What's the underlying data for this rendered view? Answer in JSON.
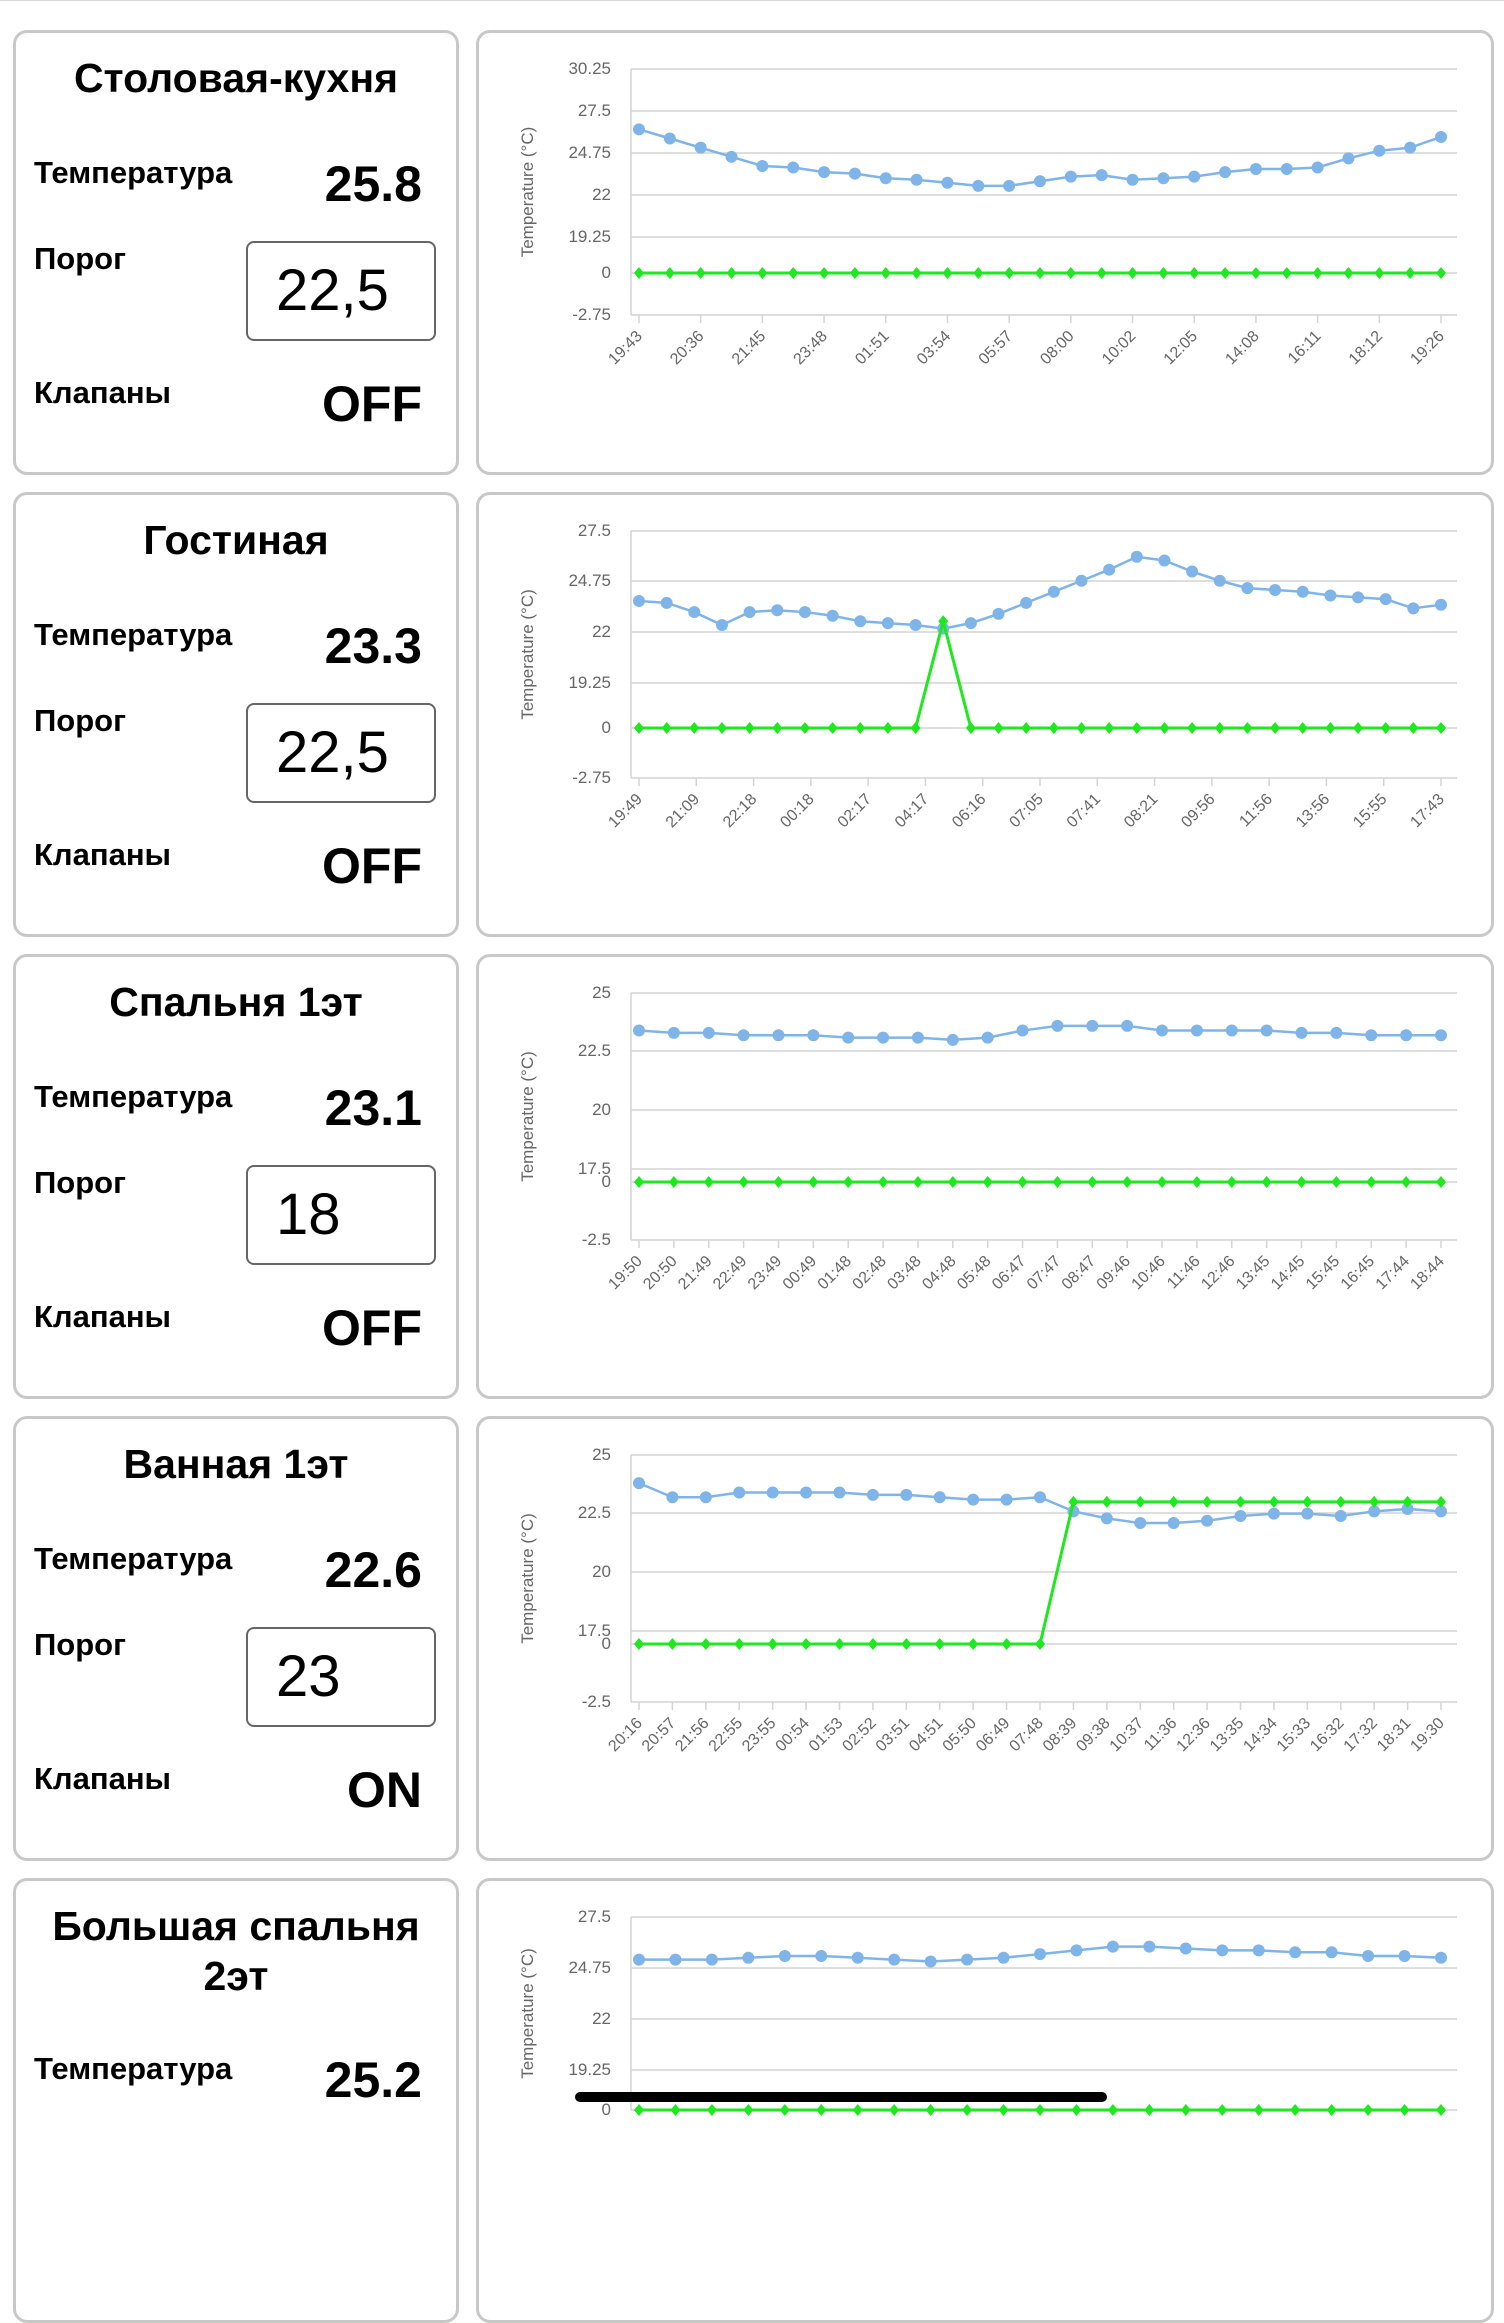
{
  "labels": {
    "temperature": "Температура",
    "threshold": "Порог",
    "valves": "Клапаны"
  },
  "rooms": [
    {
      "name": "Столовая-кухня",
      "temperature": "25.8",
      "threshold": "22,5",
      "valves": "OFF"
    },
    {
      "name": "Гостиная",
      "temperature": "23.3",
      "threshold": "22,5",
      "valves": "OFF"
    },
    {
      "name": "Спальня 1эт",
      "temperature": "23.1",
      "threshold": "18",
      "valves": "OFF"
    },
    {
      "name": "Ванная 1эт",
      "temperature": "22.6",
      "threshold": "23",
      "valves": "ON"
    },
    {
      "name": "Большая спальня 2эт",
      "temperature": "25.2"
    }
  ],
  "colors": {
    "temperature_series": "#7fb4e8",
    "valve_series": "#1ee81e",
    "grid": "#d4d4d4",
    "panel_border": "#c8c8c8"
  },
  "chart_data": [
    {
      "type": "line",
      "ylabel": "Temperature (°C)",
      "y_ticks": [
        "30.25",
        "27.5",
        "24.75",
        "22",
        "19.25",
        "0",
        "-2.75"
      ],
      "x_tick_labels": [
        "19:43",
        "20:36",
        "21:45",
        "23:48",
        "01:51",
        "03:54",
        "05:57",
        "08:00",
        "10:02",
        "12:05",
        "14:08",
        "16:11",
        "18:12",
        "19:26"
      ],
      "series": [
        {
          "values": [
            26.3,
            25.7,
            25.1,
            24.5,
            23.9,
            23.8,
            23.5,
            23.4,
            23.1,
            23.0,
            22.8,
            22.6,
            22.6,
            22.9,
            23.2,
            23.3,
            23.0,
            23.1,
            23.2,
            23.5,
            23.7,
            23.7,
            23.8,
            24.4,
            24.9,
            25.1,
            25.8
          ]
        },
        {
          "values": [
            0,
            0,
            0,
            0,
            0,
            0,
            0,
            0,
            0,
            0,
            0,
            0,
            0,
            0,
            0,
            0,
            0,
            0,
            0,
            0,
            0,
            0,
            0,
            0,
            0,
            0,
            0
          ]
        }
      ]
    },
    {
      "type": "line",
      "ylabel": "Temperature (°C)",
      "y_ticks": [
        "27.5",
        "24.75",
        "22",
        "19.25",
        "0",
        "-2.75"
      ],
      "x_tick_labels": [
        "19:49",
        "21:09",
        "22:18",
        "00:18",
        "02:17",
        "04:17",
        "06:16",
        "07:05",
        "07:41",
        "08:21",
        "09:56",
        "11:56",
        "13:56",
        "15:55",
        "17:43"
      ],
      "series": [
        {
          "values": [
            23.7,
            23.6,
            23.1,
            22.4,
            23.1,
            23.2,
            23.1,
            22.9,
            22.6,
            22.5,
            22.4,
            22.2,
            22.5,
            23.0,
            23.6,
            24.2,
            24.8,
            25.4,
            26.1,
            25.9,
            25.3,
            24.8,
            24.4,
            24.3,
            24.2,
            24.0,
            23.9,
            23.8,
            23.3,
            23.5
          ]
        },
        {
          "values": [
            0,
            0,
            0,
            0,
            0,
            0,
            0,
            0,
            0,
            0,
            0,
            22.6,
            0,
            0,
            0,
            0,
            0,
            0,
            0,
            0,
            0,
            0,
            0,
            0,
            0,
            0,
            0,
            0,
            0,
            0
          ]
        }
      ]
    },
    {
      "type": "line",
      "ylabel": "Temperature (°C)",
      "y_ticks": [
        "25",
        "22.5",
        "20",
        "17.5",
        "0",
        "-2.5"
      ],
      "x_tick_labels": [
        "19:50",
        "20:50",
        "21:49",
        "22:49",
        "23:49",
        "00:49",
        "01:48",
        "02:48",
        "03:48",
        "04:48",
        "05:48",
        "06:47",
        "07:47",
        "08:47",
        "09:46",
        "10:46",
        "11:46",
        "12:46",
        "13:45",
        "14:45",
        "15:45",
        "16:45",
        "17:44",
        "18:44"
      ],
      "series": [
        {
          "values": [
            23.4,
            23.3,
            23.3,
            23.2,
            23.2,
            23.2,
            23.1,
            23.1,
            23.1,
            23.0,
            23.1,
            23.4,
            23.6,
            23.6,
            23.6,
            23.4,
            23.4,
            23.4,
            23.4,
            23.3,
            23.3,
            23.2,
            23.2,
            23.2
          ]
        },
        {
          "values": [
            0,
            0,
            0,
            0,
            0,
            0,
            0,
            0,
            0,
            0,
            0,
            0,
            0,
            0,
            0,
            0,
            0,
            0,
            0,
            0,
            0,
            0,
            0,
            0
          ]
        }
      ]
    },
    {
      "type": "line",
      "ylabel": "Temperature (°C)",
      "y_ticks": [
        "25",
        "22.5",
        "20",
        "17.5",
        "0",
        "-2.5"
      ],
      "x_tick_labels": [
        "20:16",
        "20:57",
        "21:56",
        "22:55",
        "23:55",
        "00:54",
        "01:53",
        "02:52",
        "03:51",
        "04:51",
        "05:50",
        "06:49",
        "07:48",
        "08:39",
        "09:38",
        "10:37",
        "11:36",
        "12:36",
        "13:35",
        "14:34",
        "15:33",
        "16:32",
        "17:32",
        "18:31",
        "19:30"
      ],
      "series": [
        {
          "values": [
            23.8,
            23.2,
            23.2,
            23.4,
            23.4,
            23.4,
            23.4,
            23.3,
            23.3,
            23.2,
            23.1,
            23.1,
            23.2,
            22.6,
            22.3,
            22.1,
            22.1,
            22.2,
            22.4,
            22.5,
            22.5,
            22.4,
            22.6,
            22.7,
            22.6
          ]
        },
        {
          "values": [
            0,
            0,
            0,
            0,
            0,
            0,
            0,
            0,
            0,
            0,
            0,
            0,
            0,
            23,
            23,
            23,
            23,
            23,
            23,
            23,
            23,
            23,
            23,
            23,
            23
          ]
        }
      ]
    },
    {
      "type": "line",
      "ylabel": "Temperature (°C)",
      "y_ticks": [
        "27.5",
        "24.75",
        "22",
        "19.25",
        "0"
      ],
      "x_tick_labels": [],
      "series": [
        {
          "values": [
            25.2,
            25.2,
            25.2,
            25.3,
            25.4,
            25.4,
            25.3,
            25.2,
            25.1,
            25.2,
            25.3,
            25.5,
            25.7,
            25.9,
            25.9,
            25.8,
            25.7,
            25.7,
            25.6,
            25.6,
            25.4,
            25.4,
            25.3
          ]
        },
        {
          "values": [
            0,
            0,
            0,
            0,
            0,
            0,
            0,
            0,
            0,
            0,
            0,
            0,
            0,
            0,
            0,
            0,
            0,
            0,
            0,
            0,
            0,
            0,
            0
          ]
        }
      ]
    }
  ]
}
